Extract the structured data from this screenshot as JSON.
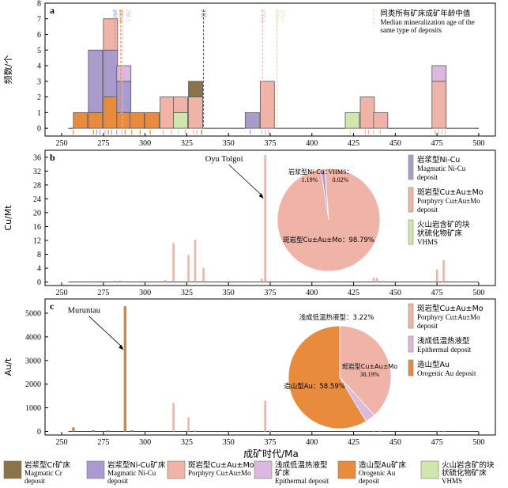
{
  "figure": {
    "xlabel": "成矿时代/Ma",
    "x_ticks": [
      250,
      275,
      300,
      325,
      350,
      375,
      400,
      425,
      450,
      475,
      500
    ],
    "xlim": [
      240,
      510
    ],
    "colors": {
      "magmatic_cr": "#8c7249",
      "magmatic_nicu": "#a99ccc",
      "porphyry": "#f0b3a8",
      "epithermal": "#dcb9dc",
      "orogenic": "#e98b3d",
      "vhms": "#cfe6ad"
    }
  },
  "chart_data": [
    {
      "type": "bar",
      "panel": "a",
      "ylabel": "频数/个",
      "ylim": [
        -0.5,
        8
      ],
      "y_ticks": [
        0,
        1,
        2,
        3,
        4,
        5,
        6,
        7,
        8
      ],
      "bin_width": 8.5,
      "bins": [
        {
          "start": 257,
          "stacks": [
            {
              "type": "orogenic",
              "count": 1
            }
          ]
        },
        {
          "start": 266,
          "stacks": [
            {
              "type": "orogenic",
              "count": 1
            },
            {
              "type": "magmatic_nicu",
              "count": 4
            }
          ]
        },
        {
          "start": 275,
          "stacks": [
            {
              "type": "orogenic",
              "count": 2
            },
            {
              "type": "magmatic_nicu",
              "count": 3
            },
            {
              "type": "porphyry",
              "count": 2
            }
          ]
        },
        {
          "start": 283,
          "stacks": [
            {
              "type": "orogenic",
              "count": 1
            },
            {
              "type": "magmatic_nicu",
              "count": 2
            },
            {
              "type": "epithermal",
              "count": 1
            }
          ]
        },
        {
          "start": 291,
          "stacks": [
            {
              "type": "orogenic",
              "count": 1
            }
          ]
        },
        {
          "start": 300,
          "stacks": [
            {
              "type": "orogenic",
              "count": 1
            }
          ]
        },
        {
          "start": 309,
          "stacks": [
            {
              "type": "porphyry",
              "count": 2
            }
          ]
        },
        {
          "start": 317,
          "stacks": [
            {
              "type": "vhms",
              "count": 1
            },
            {
              "type": "porphyry",
              "count": 1
            }
          ]
        },
        {
          "start": 326,
          "stacks": [
            {
              "type": "porphyry",
              "count": 2
            },
            {
              "type": "magmatic_cr",
              "count": 1
            }
          ]
        },
        {
          "start": 360,
          "stacks": [
            {
              "type": "magmatic_nicu",
              "count": 1
            }
          ]
        },
        {
          "start": 369,
          "stacks": [
            {
              "type": "porphyry",
              "count": 3
            }
          ]
        },
        {
          "start": 420,
          "stacks": [
            {
              "type": "vhms",
              "count": 1
            }
          ]
        },
        {
          "start": 429,
          "stacks": [
            {
              "type": "porphyry",
              "count": 2
            }
          ]
        },
        {
          "start": 437,
          "stacks": [
            {
              "type": "porphyry",
              "count": 1
            }
          ]
        },
        {
          "start": 472,
          "stacks": [
            {
              "type": "porphyry",
              "count": 3
            },
            {
              "type": "epithermal",
              "count": 1
            }
          ]
        }
      ],
      "median_lines": [
        {
          "label": "282",
          "x": 282,
          "type": "magmatic_nicu"
        },
        {
          "label": "285.4",
          "x": 285.4,
          "type": "orogenic"
        },
        {
          "label": "286.5",
          "x": 286.5,
          "type": "epithermal"
        },
        {
          "label": "335",
          "x": 335,
          "type": "magmatic_cr"
        },
        {
          "label": "370.4",
          "x": 370.4,
          "type": "porphyry"
        },
        {
          "label": "379.1",
          "x": 379.1,
          "type": "vhms"
        },
        {
          "label": "379.1",
          "x": 379.1,
          "type": "vhms"
        }
      ],
      "median_legend": {
        "line_color": "#cfe6ad",
        "zh": "同类所有矿床成矿年龄中值",
        "en1": "Median mineralization age of the",
        "en2": "same type of deposits"
      },
      "rug_ticks": [
        {
          "x": 257,
          "type": "orogenic"
        },
        {
          "x": 269,
          "type": "orogenic"
        },
        {
          "x": 271,
          "type": "magmatic_nicu"
        },
        {
          "x": 273,
          "type": "magmatic_nicu"
        },
        {
          "x": 276,
          "type": "porphyry"
        },
        {
          "x": 278,
          "type": "orogenic"
        },
        {
          "x": 280,
          "type": "magmatic_nicu"
        },
        {
          "x": 283,
          "type": "magmatic_nicu"
        },
        {
          "x": 286,
          "type": "epithermal"
        },
        {
          "x": 288,
          "type": "orogenic"
        },
        {
          "x": 292,
          "type": "orogenic"
        },
        {
          "x": 297,
          "type": "orogenic"
        },
        {
          "x": 303,
          "type": "orogenic"
        },
        {
          "x": 311,
          "type": "porphyry"
        },
        {
          "x": 316,
          "type": "porphyry"
        },
        {
          "x": 320,
          "type": "vhms"
        },
        {
          "x": 324,
          "type": "porphyry"
        },
        {
          "x": 329,
          "type": "porphyry"
        },
        {
          "x": 331,
          "type": "porphyry"
        },
        {
          "x": 334,
          "type": "magmatic_cr"
        },
        {
          "x": 363,
          "type": "magmatic_nicu"
        },
        {
          "x": 370,
          "type": "porphyry"
        },
        {
          "x": 372,
          "type": "porphyry"
        },
        {
          "x": 374,
          "type": "porphyry"
        },
        {
          "x": 423,
          "type": "vhms"
        },
        {
          "x": 432,
          "type": "porphyry"
        },
        {
          "x": 434,
          "type": "porphyry"
        },
        {
          "x": 437,
          "type": "porphyry"
        },
        {
          "x": 441,
          "type": "porphyry"
        },
        {
          "x": 474,
          "type": "porphyry"
        },
        {
          "x": 476,
          "type": "epithermal"
        },
        {
          "x": 478,
          "type": "porphyry"
        },
        {
          "x": 480,
          "type": "porphyry"
        }
      ]
    },
    {
      "type": "bar",
      "panel": "b",
      "ylabel": "Cu/Mt",
      "ylim": [
        -1,
        38
      ],
      "y_ticks": [
        0,
        4,
        8,
        12,
        16,
        20,
        24,
        28,
        32,
        36
      ],
      "bars": [
        {
          "x": 270,
          "value": 0.2,
          "type": "magmatic_nicu"
        },
        {
          "x": 282,
          "value": 0.3,
          "type": "magmatic_nicu"
        },
        {
          "x": 285,
          "value": 0.3,
          "type": "magmatic_nicu"
        },
        {
          "x": 287,
          "value": 0.2,
          "type": "magmatic_nicu"
        },
        {
          "x": 312,
          "value": 0.6,
          "type": "porphyry"
        },
        {
          "x": 317,
          "value": 11.2,
          "type": "porphyry"
        },
        {
          "x": 326,
          "value": 7.8,
          "type": "porphyry"
        },
        {
          "x": 330,
          "value": 12.2,
          "type": "porphyry"
        },
        {
          "x": 335,
          "value": 4.1,
          "type": "porphyry"
        },
        {
          "x": 370,
          "value": 1.0,
          "type": "porphyry"
        },
        {
          "x": 372,
          "value": 36.6,
          "type": "porphyry"
        },
        {
          "x": 437,
          "value": 1.3,
          "type": "porphyry"
        },
        {
          "x": 439,
          "value": 1.2,
          "type": "porphyry"
        },
        {
          "x": 443,
          "value": 0.4,
          "type": "porphyry"
        },
        {
          "x": 475,
          "value": 3.6,
          "type": "porphyry"
        },
        {
          "x": 479,
          "value": 6.3,
          "type": "porphyry"
        }
      ],
      "annotation": {
        "text": "Oyu Tolgoi",
        "x": 372,
        "y": 36.6
      },
      "pie": {
        "slices": [
          {
            "type": "porphyry",
            "value": 98.79,
            "label": "斑岩型Cu±Au±Mo：98.79%"
          },
          {
            "type": "magmatic_nicu",
            "value": 1.19,
            "label1": "岩浆型Ni-Cu：",
            "label2": "1.19%"
          },
          {
            "type": "vhms",
            "value": 0.02,
            "label1": "VHMS：",
            "label2": "0.02%"
          }
        ]
      },
      "legend": [
        {
          "type": "magmatic_nicu",
          "zh": "岩浆型Ni-Cu",
          "en1": "Magmatic Ni-Cu",
          "en2": "deposit"
        },
        {
          "type": "porphyry",
          "zh": "斑岩型Cu±Au±Mo",
          "en1": "Porphyry Cu±Au±Mo",
          "en2": "deposit"
        },
        {
          "type": "vhms",
          "zh": "火山岩含矿的块",
          "zh2": "状硫化物矿床",
          "en1": "VHMS"
        }
      ]
    },
    {
      "type": "bar",
      "panel": "c",
      "ylabel": "Au/t",
      "ylim": [
        -150,
        5600
      ],
      "y_ticks": [
        0,
        1000,
        2000,
        3000,
        4000,
        5000
      ],
      "bars": [
        {
          "x": 257,
          "value": 160,
          "type": "orogenic"
        },
        {
          "x": 269,
          "value": 40,
          "type": "orogenic"
        },
        {
          "x": 278,
          "value": 30,
          "type": "orogenic"
        },
        {
          "x": 288,
          "value": 5280,
          "type": "orogenic"
        },
        {
          "x": 292,
          "value": 40,
          "type": "orogenic"
        },
        {
          "x": 317,
          "value": 1200,
          "type": "porphyry"
        },
        {
          "x": 326,
          "value": 600,
          "type": "porphyry"
        },
        {
          "x": 330,
          "value": 50,
          "type": "porphyry"
        },
        {
          "x": 372,
          "value": 1300,
          "type": "porphyry"
        },
        {
          "x": 375,
          "value": 50,
          "type": "porphyry"
        },
        {
          "x": 437,
          "value": 40,
          "type": "porphyry"
        },
        {
          "x": 441,
          "value": 40,
          "type": "porphyry"
        },
        {
          "x": 476,
          "value": 30,
          "type": "epithermal"
        },
        {
          "x": 479,
          "value": 30,
          "type": "porphyry"
        }
      ],
      "annotation": {
        "text": "Muruntau",
        "x": 288,
        "y": 5280
      },
      "pie": {
        "slices": [
          {
            "type": "orogenic",
            "value": 58.59,
            "label": "造山型Au：58.59%"
          },
          {
            "type": "porphyry",
            "value": 38.19,
            "label1": "斑岩型Cu±Au±Mo",
            "label2": "38.19%"
          },
          {
            "type": "epithermal",
            "value": 3.22,
            "label": "浅成低温热液型：3.22%"
          }
        ]
      },
      "legend": [
        {
          "type": "porphyry",
          "zh": "斑岩型Cu±Au±Mo",
          "en1": "Porphyry Cu±Au±Mo",
          "en2": "deposit"
        },
        {
          "type": "epithermal",
          "zh": "浅成低温热液型",
          "en1": "Epithermal deposit"
        },
        {
          "type": "orogenic",
          "zh": "造山型Au",
          "en1": "Orogenic Au deposit"
        }
      ]
    }
  ],
  "bottom_legend": [
    {
      "type": "magmatic_cr",
      "zh": "岩浆型Cr矿床",
      "en1": "Magmatic Cr",
      "en2": "deposit"
    },
    {
      "type": "magmatic_nicu",
      "zh": "岩浆型Ni-Cu矿床",
      "en1": "Magmatic Ni-Cu",
      "en2": "deposit"
    },
    {
      "type": "porphyry",
      "zh": "斑岩型Cu±Au±Mo矿床",
      "en1": "Porphyry Cu±Au±Mo"
    },
    {
      "type": "epithermal",
      "zh": "浅成低温热液型",
      "zh2": "矿床",
      "en1": "Epithermal deposit"
    },
    {
      "type": "orogenic",
      "zh": "造山型Au矿床",
      "en1": "Orogenic Au",
      "en2": "deposit"
    },
    {
      "type": "vhms",
      "zh": "火山岩含矿的块",
      "zh2": "状硫化物矿床",
      "en1": "VHMS"
    }
  ]
}
